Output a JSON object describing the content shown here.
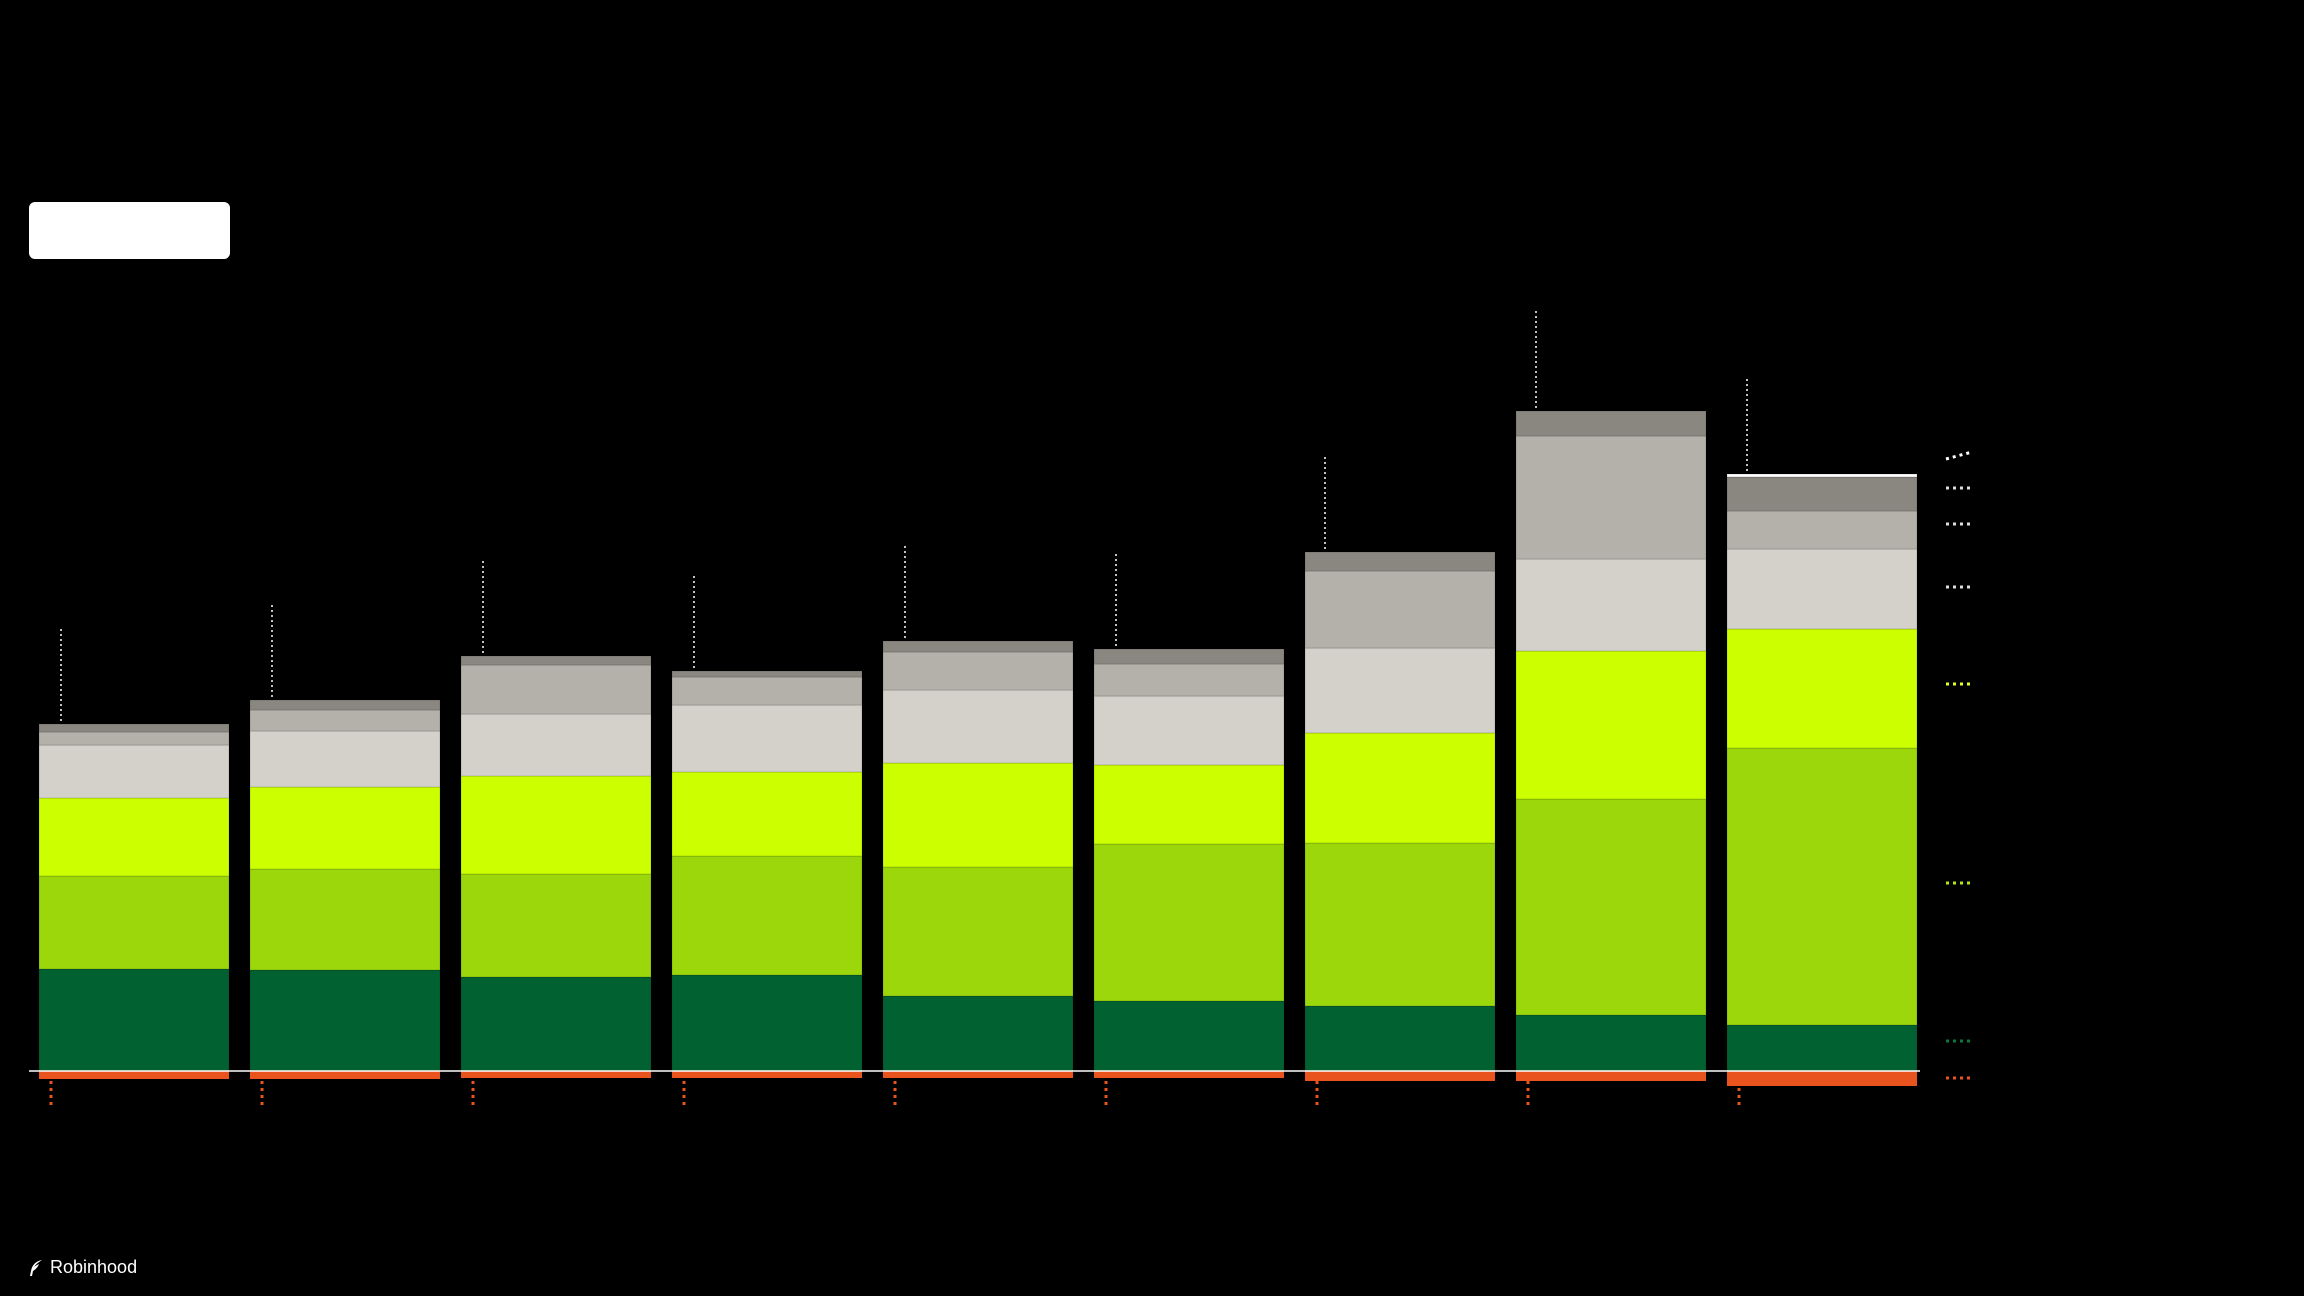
{
  "brand": {
    "name": "Robinhood",
    "icon": "feather-logo-icon"
  },
  "chart_data": {
    "type": "bar",
    "stacked": true,
    "title": "",
    "xlabel": "",
    "ylabel": "",
    "ylim": [
      -3.5,
      70
    ],
    "grid": false,
    "legend": "none",
    "categories": [
      "",
      "",
      "",
      "",
      "",
      "",
      "",
      "",
      ""
    ],
    "series": [
      {
        "color": "#E8531E",
        "values": [
          -0.8,
          -0.8,
          -0.7,
          -0.7,
          -0.7,
          -0.7,
          -1.0,
          -1.0,
          -1.5
        ]
      },
      {
        "color": "#026131",
        "values": [
          10.2,
          10.1,
          9.4,
          9.6,
          7.5,
          7.0,
          6.5,
          5.6,
          4.6
        ]
      },
      {
        "color": "#9CD70C",
        "values": [
          9.3,
          10.1,
          10.3,
          11.9,
          12.9,
          15.7,
          16.3,
          21.6,
          27.7
        ]
      },
      {
        "color": "#CCFF00",
        "values": [
          7.8,
          8.2,
          9.8,
          8.4,
          10.4,
          7.9,
          11.0,
          14.8,
          11.9
        ]
      },
      {
        "color": "#D4D0CA",
        "values": [
          5.3,
          5.6,
          6.2,
          6.7,
          7.3,
          6.9,
          8.5,
          9.2,
          8.0
        ]
      },
      {
        "color": "#B4B1AA",
        "values": [
          1.3,
          2.1,
          4.9,
          2.8,
          3.8,
          3.2,
          7.7,
          12.3,
          3.8
        ]
      },
      {
        "color": "#8A8781",
        "values": [
          0.8,
          1.0,
          0.9,
          0.6,
          1.1,
          1.5,
          1.9,
          2.5,
          3.4
        ]
      },
      {
        "color": "#FFFFFF",
        "values": [
          0,
          0,
          0,
          0,
          0,
          0,
          0,
          0,
          0.3
        ]
      }
    ],
    "totals_markers": true
  }
}
